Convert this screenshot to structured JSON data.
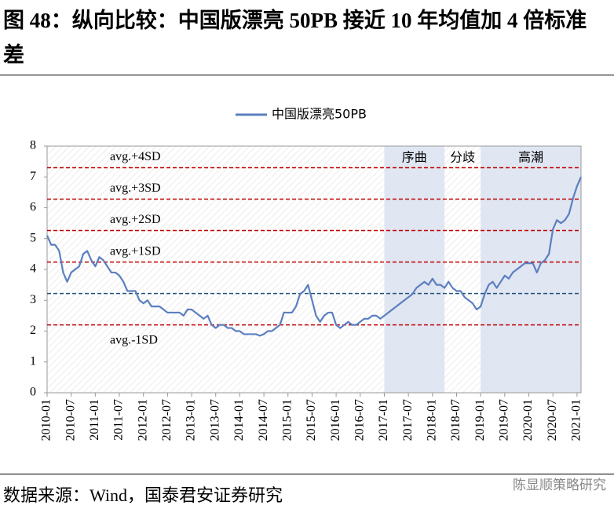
{
  "title": "图 48：纵向比较：中国版漂亮 50PB 接近 10 年均值加 4 倍标准差",
  "source": "数据来源：Wind，国泰君安证券研究",
  "watermark": "陈显顺策略研究",
  "chart_data": {
    "type": "line",
    "x": [
      "2010-01",
      "2010-02",
      "2010-03",
      "2010-04",
      "2010-05",
      "2010-06",
      "2010-07",
      "2010-08",
      "2010-09",
      "2010-10",
      "2010-11",
      "2010-12",
      "2011-01",
      "2011-02",
      "2011-03",
      "2011-04",
      "2011-05",
      "2011-06",
      "2011-07",
      "2011-08",
      "2011-09",
      "2011-10",
      "2011-11",
      "2011-12",
      "2012-01",
      "2012-02",
      "2012-03",
      "2012-04",
      "2012-05",
      "2012-06",
      "2012-07",
      "2012-08",
      "2012-09",
      "2012-10",
      "2012-11",
      "2012-12",
      "2013-01",
      "2013-02",
      "2013-03",
      "2013-04",
      "2013-05",
      "2013-06",
      "2013-07",
      "2013-08",
      "2013-09",
      "2013-10",
      "2013-11",
      "2013-12",
      "2014-01",
      "2014-02",
      "2014-03",
      "2014-04",
      "2014-05",
      "2014-06",
      "2014-07",
      "2014-08",
      "2014-09",
      "2014-10",
      "2014-11",
      "2014-12",
      "2015-01",
      "2015-02",
      "2015-03",
      "2015-04",
      "2015-05",
      "2015-06",
      "2015-07",
      "2015-08",
      "2015-09",
      "2015-10",
      "2015-11",
      "2015-12",
      "2016-01",
      "2016-02",
      "2016-03",
      "2016-04",
      "2016-05",
      "2016-06",
      "2016-07",
      "2016-08",
      "2016-09",
      "2016-10",
      "2016-11",
      "2016-12",
      "2017-01",
      "2017-02",
      "2017-03",
      "2017-04",
      "2017-05",
      "2017-06",
      "2017-07",
      "2017-08",
      "2017-09",
      "2017-10",
      "2017-11",
      "2017-12",
      "2018-01",
      "2018-02",
      "2018-03",
      "2018-04",
      "2018-05",
      "2018-06",
      "2018-07",
      "2018-08",
      "2018-09",
      "2018-10",
      "2018-11",
      "2018-12",
      "2019-01",
      "2019-02",
      "2019-03",
      "2019-04",
      "2019-05",
      "2019-06",
      "2019-07",
      "2019-08",
      "2019-09",
      "2019-10",
      "2019-11",
      "2019-12",
      "2020-01",
      "2020-02",
      "2020-03",
      "2020-04",
      "2020-05",
      "2020-06",
      "2020-07",
      "2020-08",
      "2020-09",
      "2020-10",
      "2020-11",
      "2020-12",
      "2021-01",
      "2021-02"
    ],
    "xticks": [
      "2010-01",
      "2010-07",
      "2011-01",
      "2011-07",
      "2012-01",
      "2012-07",
      "2013-01",
      "2013-07",
      "2014-01",
      "2014-07",
      "2015-01",
      "2015-07",
      "2016-01",
      "2016-07",
      "2017-01",
      "2017-07",
      "2018-01",
      "2018-07",
      "2019-01",
      "2019-07",
      "2020-01",
      "2020-07",
      "2021-01"
    ],
    "series": [
      {
        "name": "中国版漂亮50PB",
        "color": "#5b7fbf",
        "values": [
          5.1,
          4.8,
          4.8,
          4.6,
          3.9,
          3.6,
          3.9,
          4.0,
          4.1,
          4.5,
          4.6,
          4.3,
          4.1,
          4.4,
          4.3,
          4.1,
          3.9,
          3.9,
          3.8,
          3.6,
          3.3,
          3.3,
          3.3,
          3.0,
          2.9,
          3.0,
          2.8,
          2.8,
          2.8,
          2.7,
          2.6,
          2.6,
          2.6,
          2.6,
          2.5,
          2.7,
          2.7,
          2.6,
          2.5,
          2.4,
          2.5,
          2.2,
          2.1,
          2.2,
          2.2,
          2.1,
          2.1,
          2.0,
          2.0,
          1.9,
          1.9,
          1.9,
          1.9,
          1.85,
          1.9,
          2.0,
          2.0,
          2.1,
          2.2,
          2.6,
          2.6,
          2.6,
          2.8,
          3.2,
          3.3,
          3.5,
          3.0,
          2.5,
          2.3,
          2.5,
          2.6,
          2.6,
          2.2,
          2.1,
          2.2,
          2.3,
          2.2,
          2.2,
          2.3,
          2.4,
          2.4,
          2.5,
          2.5,
          2.4,
          2.5,
          2.6,
          2.7,
          2.8,
          2.9,
          3.0,
          3.1,
          3.2,
          3.4,
          3.5,
          3.6,
          3.5,
          3.7,
          3.5,
          3.5,
          3.4,
          3.6,
          3.4,
          3.3,
          3.3,
          3.1,
          3.0,
          2.9,
          2.7,
          2.8,
          3.2,
          3.5,
          3.6,
          3.4,
          3.6,
          3.8,
          3.7,
          3.9,
          4.0,
          4.1,
          4.2,
          4.2,
          4.2,
          3.9,
          4.2,
          4.3,
          4.5,
          5.3,
          5.6,
          5.5,
          5.6,
          5.8,
          6.3,
          6.7,
          7.0
        ]
      }
    ],
    "ylim": [
      0,
      8
    ],
    "yticks": [
      0,
      1,
      2,
      3,
      4,
      5,
      6,
      7,
      8
    ],
    "reference_lines": [
      {
        "value": 7.3,
        "label": "avg.+4SD",
        "color": "#c00000"
      },
      {
        "value": 6.28,
        "label": "avg.+3SD",
        "color": "#c00000"
      },
      {
        "value": 5.26,
        "label": "avg.+2SD",
        "color": "#c00000"
      },
      {
        "value": 4.24,
        "label": "avg.+1SD",
        "color": "#c00000"
      },
      {
        "value": 3.22,
        "color": "#1f4e79"
      },
      {
        "value": 2.2,
        "label": "avg.-1SD",
        "color": "#c00000"
      }
    ],
    "phases": [
      {
        "start": "2017-01",
        "end": "2018-04",
        "label": "序曲",
        "shaded": true
      },
      {
        "start": "2018-04",
        "end": "2019-01",
        "label": "分歧",
        "shaded": false
      },
      {
        "start": "2019-01",
        "end": "2021-02",
        "label": "高潮",
        "shaded": true
      }
    ],
    "shade_color": "#dbe2f0",
    "legend": "top"
  }
}
